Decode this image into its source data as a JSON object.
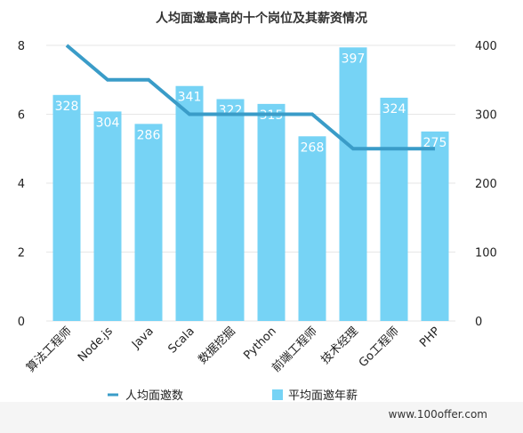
{
  "chart_data": {
    "type": "bar",
    "title": "人均面邀最高的十个岗位及其薪资情况",
    "categories": [
      "算法工程师",
      "Node.js",
      "Java",
      "Scala",
      "数据挖掘",
      "Python",
      "前端工程师",
      "技术经理",
      "Go工程师",
      "PHP"
    ],
    "series": [
      {
        "name": "平均面邀年薪",
        "type": "bar",
        "axis": "right",
        "color": "#76d3f5",
        "values": [
          328,
          304,
          286,
          341,
          322,
          315,
          268,
          397,
          324,
          275
        ]
      },
      {
        "name": "人均面邀数",
        "type": "line",
        "axis": "left",
        "color": "#3a9cc8",
        "values": [
          8,
          7,
          7,
          6,
          6,
          6,
          6,
          5,
          5,
          5
        ]
      }
    ],
    "y_left": {
      "min": 0,
      "max": 8,
      "ticks": [
        0,
        2,
        4,
        6,
        8
      ]
    },
    "y_right": {
      "min": 0,
      "max": 400,
      "ticks": [
        0,
        100,
        200,
        300,
        400
      ]
    },
    "grid": true,
    "legend_position": "bottom"
  },
  "watermark": "www.100offer.com"
}
